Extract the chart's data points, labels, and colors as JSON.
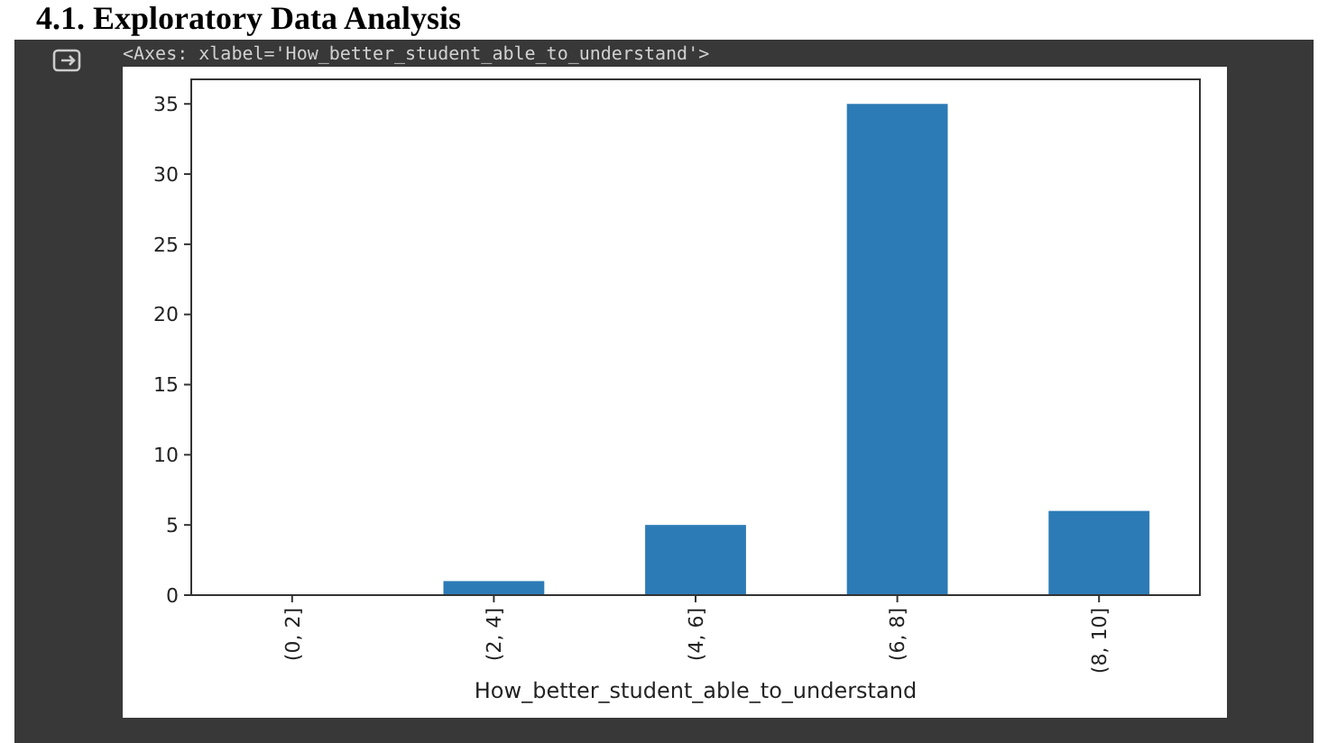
{
  "chart_data": {
    "type": "bar",
    "title": "4.1. Exploratory Data Analysis",
    "annotations": [
      "<Axes: xlabel='How_better_student_able_to_understand'>"
    ],
    "xlabel": "How_better_student_able_to_understand",
    "categories": [
      "(0, 2]",
      "(2, 4]",
      "(4, 6]",
      "(6, 8]",
      "(8, 10]"
    ],
    "values": [
      0,
      1,
      5,
      35,
      6
    ],
    "color": "#2c7bb6",
    "ylim": [
      0,
      36.75
    ],
    "yticks": [
      0,
      5,
      10,
      15,
      20,
      25,
      30,
      35
    ],
    "grid": false
  }
}
